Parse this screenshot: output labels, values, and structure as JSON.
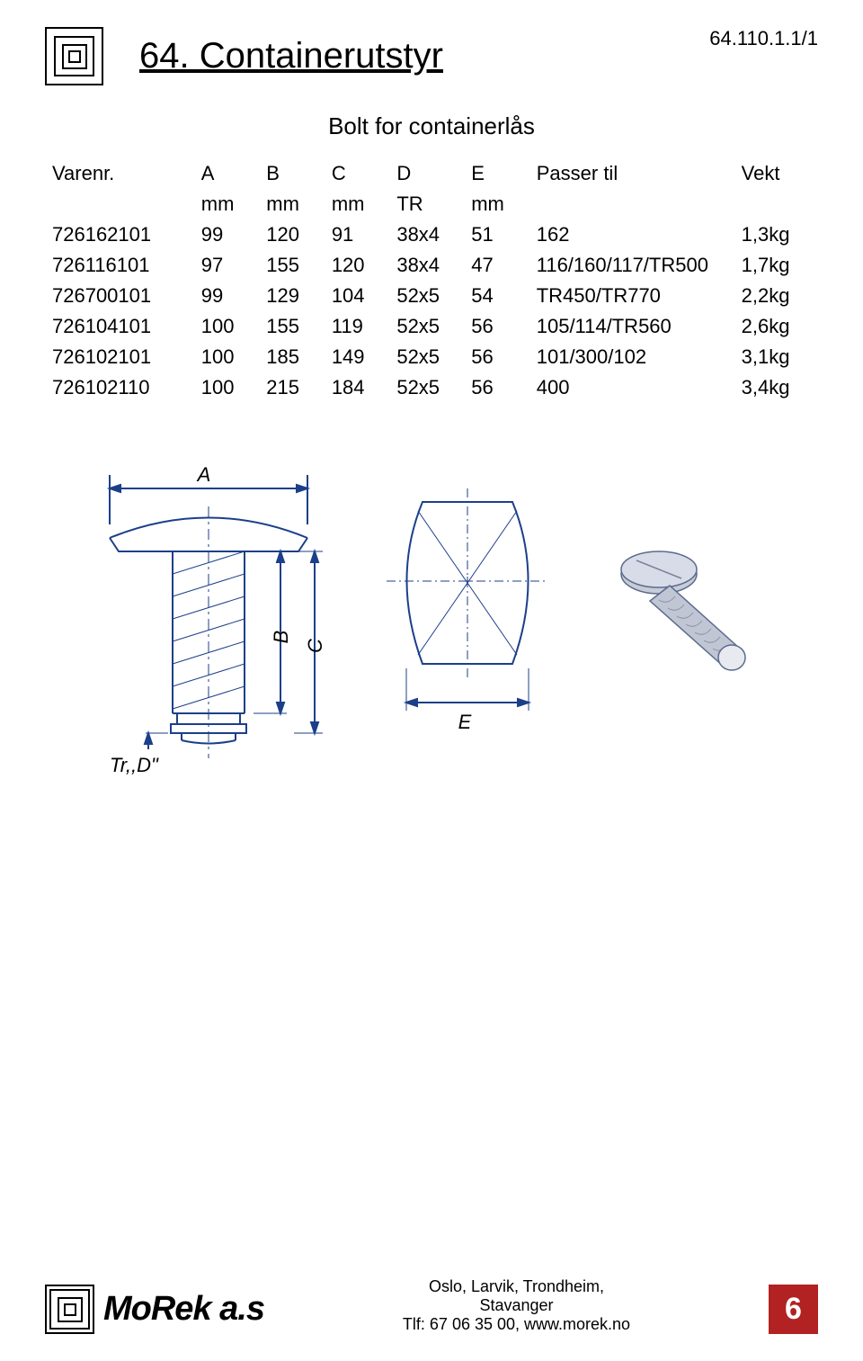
{
  "page_ref": "64.110.1.1/1",
  "title": "64. Containerutstyr",
  "subtitle": "Bolt for containerlås",
  "diagram_labels": {
    "a": "A",
    "b": "B",
    "c": "C",
    "e": "E",
    "tr_d": "Tr,,D\""
  },
  "colors": {
    "line": "#1c3f8a",
    "text": "#000000",
    "page_num_bg": "#b22222"
  },
  "table": {
    "headers": [
      "Varenr.",
      "A",
      "B",
      "C",
      "D",
      "E",
      "Passer til",
      "Vekt"
    ],
    "units": [
      "",
      "mm",
      "mm",
      "mm",
      "TR",
      "mm",
      "",
      ""
    ],
    "rows": [
      [
        "726162101",
        "99",
        "120",
        "91",
        "38x4",
        "51",
        "162",
        "1,3kg"
      ],
      [
        "726116101",
        "97",
        "155",
        "120",
        "38x4",
        "47",
        "116/160/117/TR500",
        "1,7kg"
      ],
      [
        "726700101",
        "99",
        "129",
        "104",
        "52x5",
        "54",
        "TR450/TR770",
        "2,2kg"
      ],
      [
        "726104101",
        "100",
        "155",
        "119",
        "52x5",
        "56",
        "105/114/TR560",
        "2,6kg"
      ],
      [
        "726102101",
        "100",
        "185",
        "149",
        "52x5",
        "56",
        "101/300/102",
        "3,1kg"
      ],
      [
        "726102110",
        "100",
        "215",
        "184",
        "52x5",
        "56",
        "400",
        "3,4kg"
      ]
    ]
  },
  "footer": {
    "brand": "MoRek a.s",
    "line1": "Oslo, Larvik, Trondheim,",
    "line2": "Stavanger",
    "line3": "Tlf: 67 06 35 00, www.morek.no",
    "page_num": "6"
  }
}
